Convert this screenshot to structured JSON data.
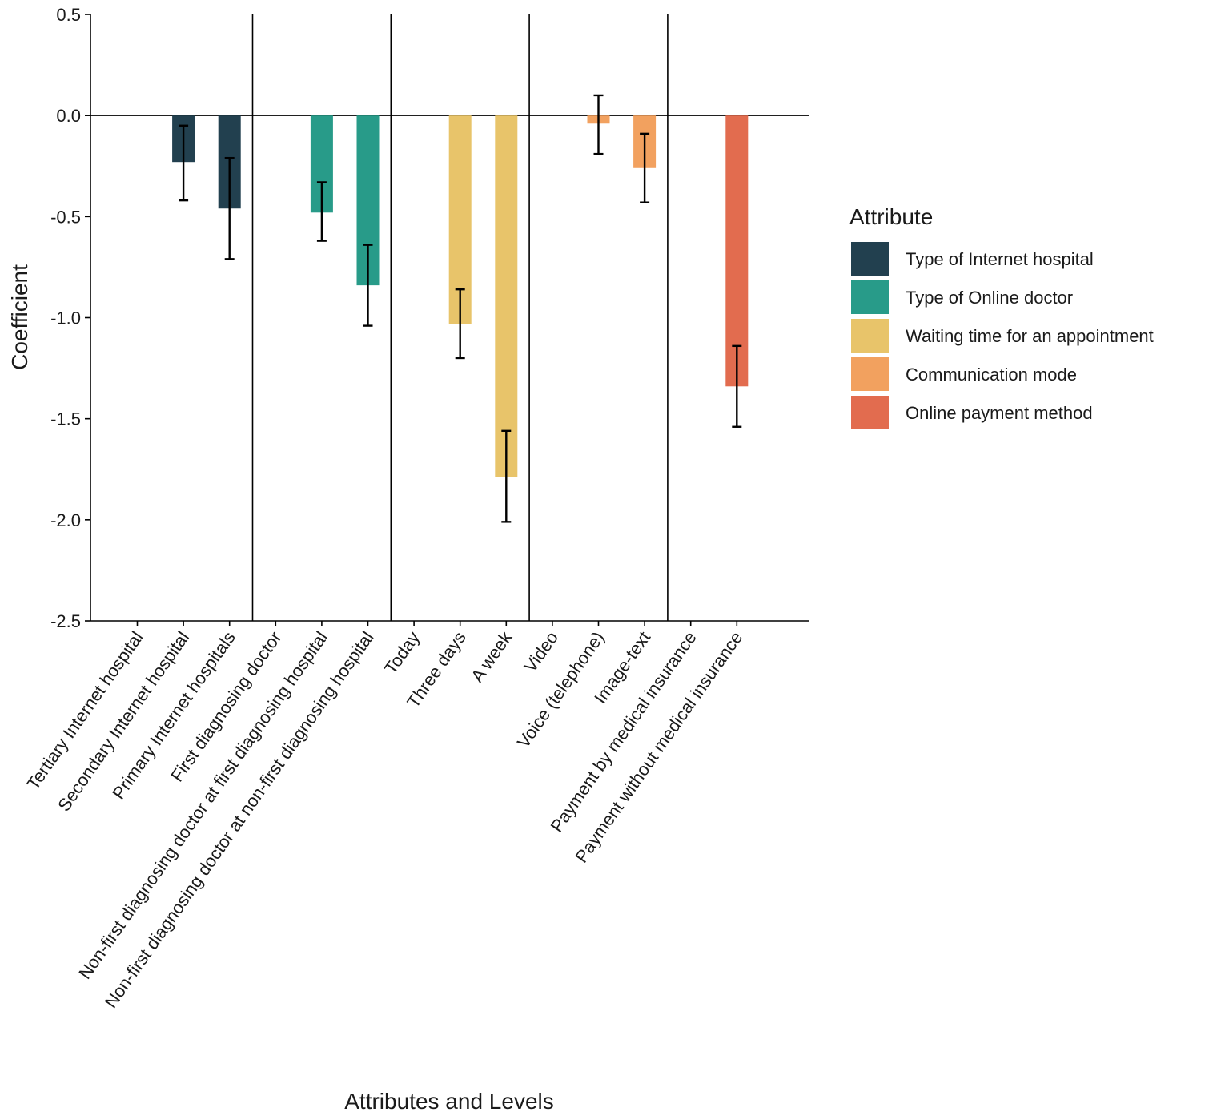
{
  "chart_data": {
    "type": "bar",
    "title": "",
    "xlabel": "Attributes and Levels",
    "ylabel": "Coefficient",
    "ylim": [
      -2.5,
      0.5
    ],
    "yticks": [
      0.5,
      0.0,
      -0.5,
      -1.0,
      -1.5,
      -2.0,
      -2.5
    ],
    "ytick_labels": [
      "0.5",
      "0.0",
      "-0.5",
      "-1.0",
      "-1.5",
      "-2.0",
      "-2.5"
    ],
    "grid": false,
    "legend": {
      "title": "Attribute",
      "placement": "right",
      "entries": [
        {
          "name": "Type of Internet hospital",
          "color": "#22404f"
        },
        {
          "name": "Type of Online doctor",
          "color": "#289b89"
        },
        {
          "name": "Waiting time for an appointment",
          "color": "#e8c46a"
        },
        {
          "name": "Communication mode",
          "color": "#f2a15f"
        },
        {
          "name": "Online payment method",
          "color": "#e26c4f"
        }
      ]
    },
    "categories": [
      "Tertiary Internet hospital",
      "Secondary Internet hospital",
      "Primary Internet hospitals",
      "First diagnosing doctor",
      "Non-first diagnosing doctor at first diagnosing hospital",
      "Non-first diagnosing doctor at non-first diagnosing hospital",
      "Today",
      "Three days",
      "A week",
      "Video",
      "Voice (telephone)",
      "Image-text",
      "Payment by medical insurance",
      "Payment without medical insurance"
    ],
    "groups": [
      0,
      0,
      0,
      1,
      1,
      1,
      2,
      2,
      2,
      3,
      3,
      3,
      4,
      4
    ],
    "values": [
      0,
      -0.23,
      -0.46,
      0,
      -0.48,
      -0.84,
      0,
      -1.03,
      -1.79,
      0,
      -0.04,
      -0.26,
      0,
      -1.34
    ],
    "error_low": [
      null,
      -0.42,
      -0.71,
      null,
      -0.62,
      -1.04,
      null,
      -1.2,
      -2.01,
      null,
      -0.19,
      -0.43,
      null,
      -1.54
    ],
    "error_high": [
      null,
      -0.05,
      -0.21,
      null,
      -0.33,
      -0.64,
      null,
      -0.86,
      -1.56,
      null,
      0.1,
      -0.09,
      null,
      -1.14
    ]
  }
}
